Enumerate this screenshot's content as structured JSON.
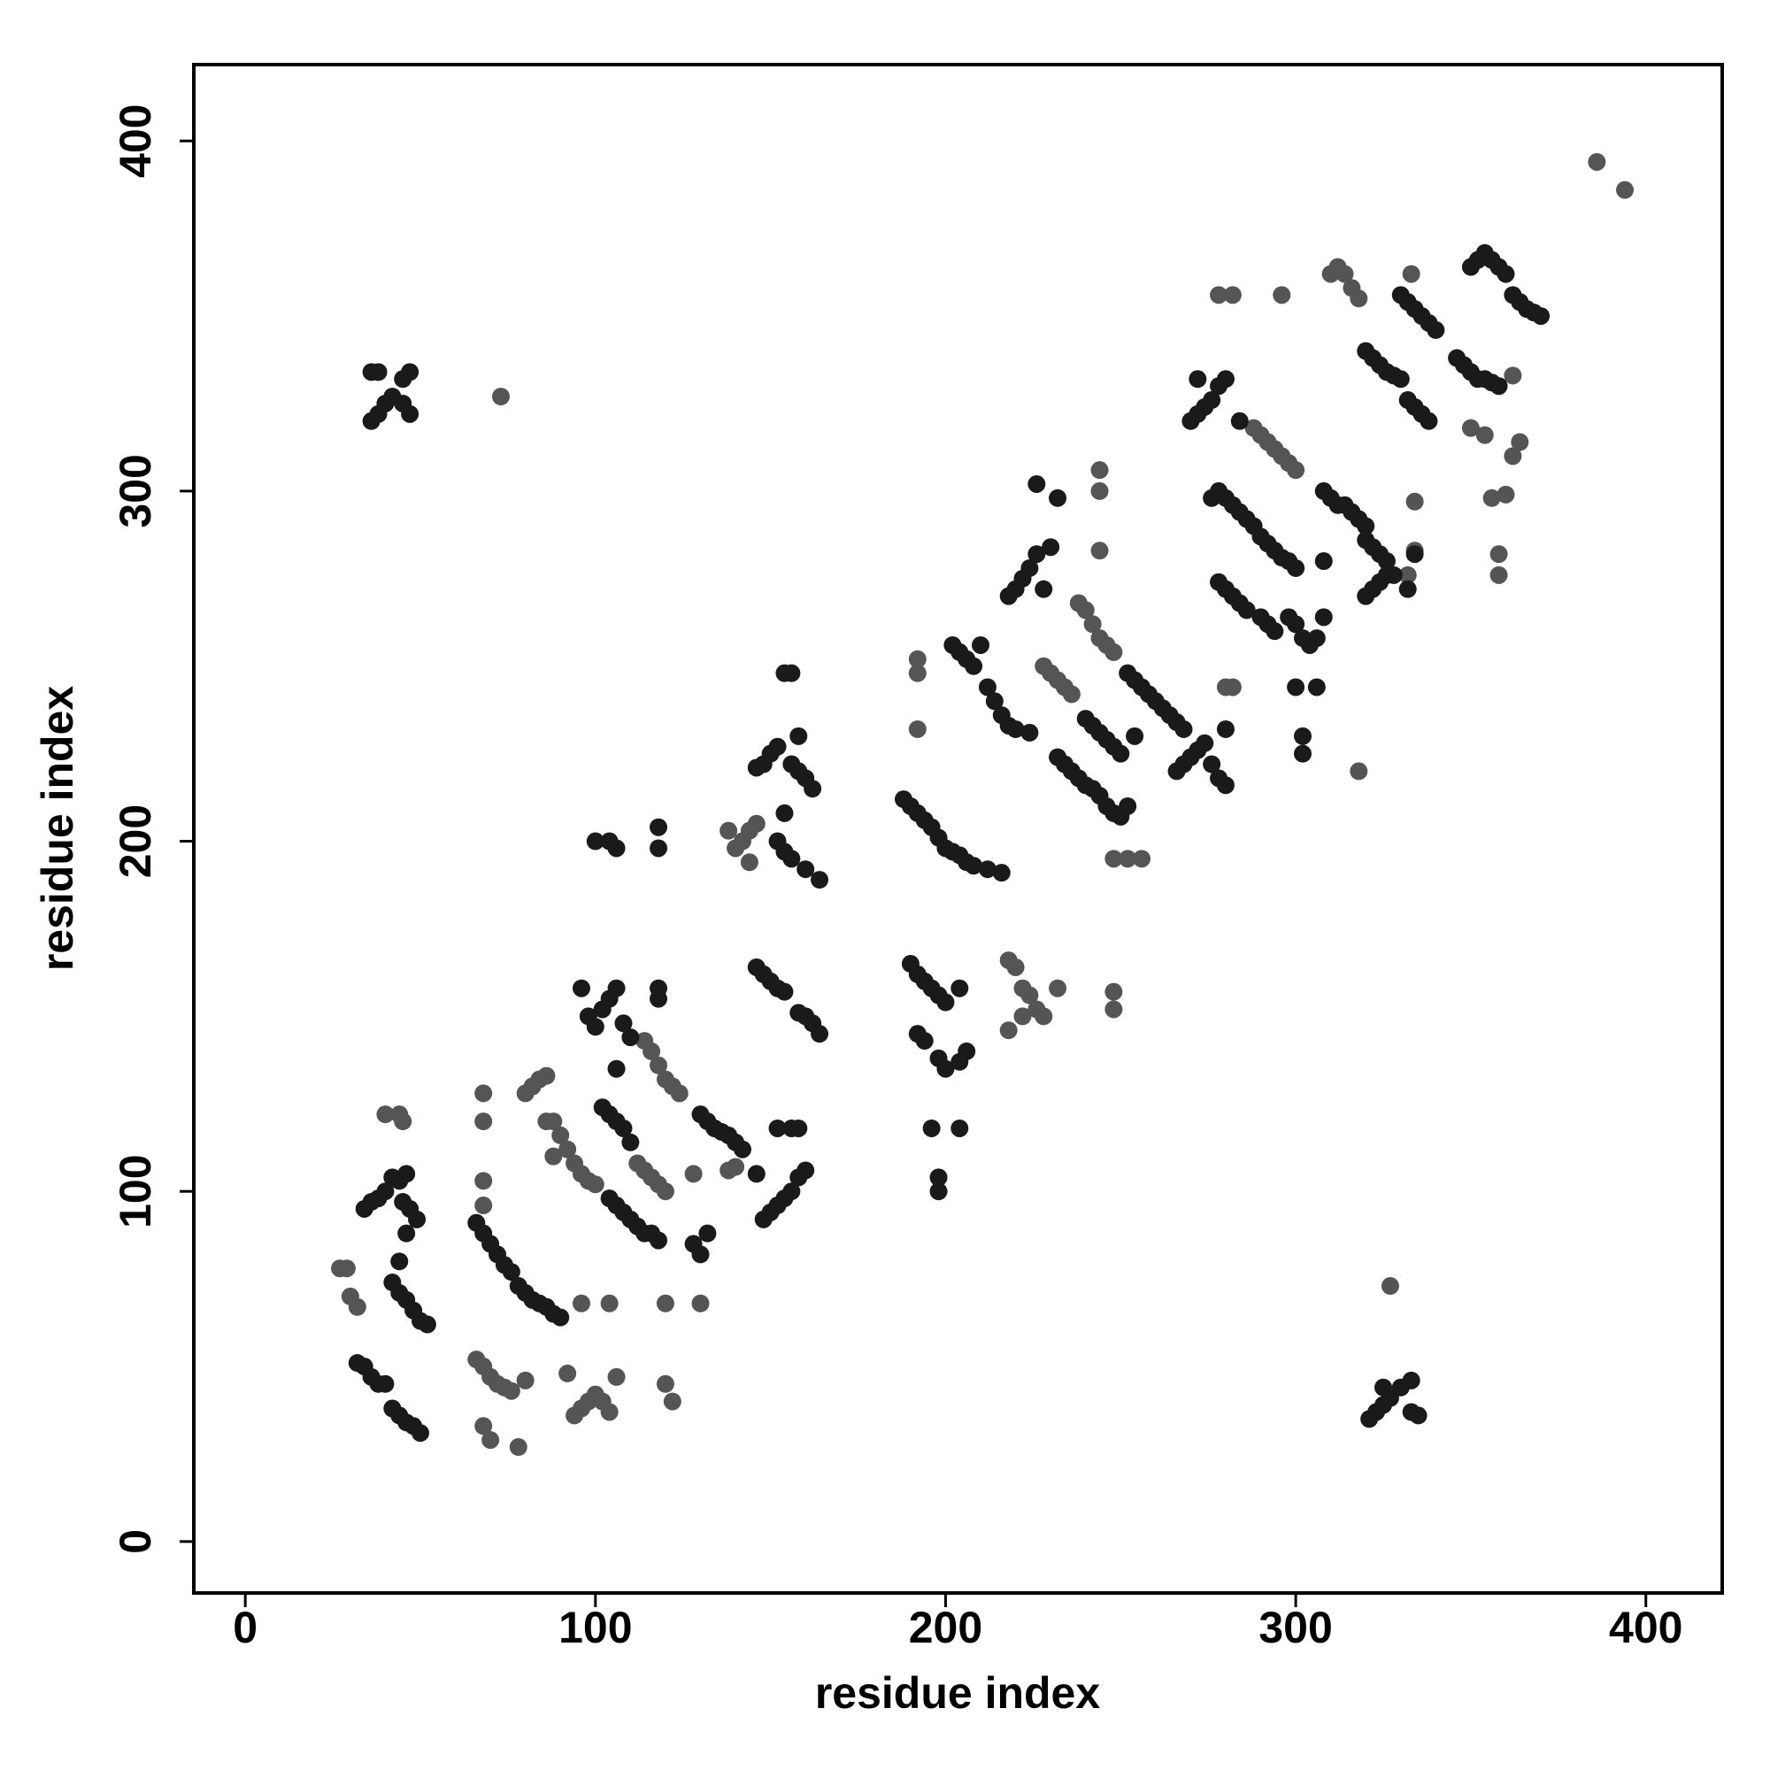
{
  "chart_data": {
    "type": "scatter",
    "x_label": "residue index",
    "y_label": "residue index",
    "xlim": [
      -14.7,
      421.8
    ],
    "ylim": [
      -14.7,
      421.8
    ],
    "xticks": [
      0,
      100,
      200,
      300,
      400
    ],
    "yticks": [
      0,
      100,
      200,
      300,
      400
    ],
    "series": [
      {
        "color": "#555555",
        "x": [
          386,
          394,
          73,
          327,
          27,
          29,
          30,
          32,
          40,
          44,
          45,
          66,
          68,
          70,
          72,
          74,
          76,
          68,
          70,
          78,
          80,
          68,
          68,
          68,
          68,
          80,
          82,
          84,
          86,
          88,
          90,
          92,
          94,
          96,
          98,
          100,
          88,
          86,
          114,
          116,
          118,
          120,
          122,
          124,
          112,
          114,
          116,
          118,
          120,
          92,
          94,
          96,
          98,
          100,
          102,
          104,
          106,
          120,
          122,
          104,
          96,
          120,
          130,
          138,
          140,
          128,
          140,
          142,
          144,
          146,
          138,
          144,
          192,
          192,
          192,
          218,
          220,
          222,
          224,
          226,
          228,
          232,
          218,
          222,
          248,
          248,
          228,
          230,
          232,
          234,
          236,
          238,
          240,
          242,
          244,
          246,
          248,
          244,
          244,
          244,
          248,
          252,
          256,
          280,
          282,
          288,
          290,
          292,
          294,
          296,
          298,
          300,
          278,
          282,
          296,
          318,
          310,
          312,
          314,
          316,
          318,
          333,
          334,
          334,
          332,
          350,
          354,
          356,
          358,
          358,
          360,
          362,
          364,
          362
        ],
        "values": [
          394,
          386,
          327,
          73,
          78,
          78,
          70,
          67,
          122,
          122,
          120,
          52,
          50,
          47,
          45,
          44,
          43,
          33,
          29,
          27,
          46,
          128,
          120,
          103,
          96,
          128,
          130,
          132,
          133,
          120,
          116,
          112,
          108,
          105,
          103,
          102,
          110,
          120,
          143,
          140,
          136,
          132,
          130,
          128,
          108,
          106,
          104,
          102,
          100,
          48,
          36,
          38,
          40,
          42,
          40,
          37,
          47,
          45,
          40,
          68,
          68,
          68,
          68,
          106,
          107,
          105,
          198,
          200,
          203,
          205,
          203,
          194,
          252,
          248,
          232,
          166,
          164,
          158,
          156,
          152,
          150,
          158,
          146,
          150,
          157,
          152,
          250,
          248,
          246,
          244,
          242,
          268,
          266,
          262,
          258,
          256,
          254,
          306,
          300,
          283,
          195,
          195,
          195,
          244,
          244,
          318,
          316,
          314,
          312,
          310,
          308,
          306,
          356,
          356,
          356,
          220,
          362,
          364,
          362,
          358,
          355,
          362,
          297,
          283,
          276,
          318,
          316,
          298,
          282,
          276,
          299,
          310,
          314,
          333
        ]
      },
      {
        "color": "#1a1a1a",
        "x": [
          36,
          38,
          40,
          42,
          36,
          38,
          45,
          47,
          45,
          47,
          321,
          323,
          325,
          327,
          325,
          330,
          333,
          333,
          335,
          32,
          34,
          36,
          38,
          40,
          42,
          44,
          46,
          48,
          50,
          34,
          36,
          38,
          40,
          42,
          44,
          46,
          45,
          47,
          49,
          46,
          44,
          42,
          44,
          46,
          48,
          50,
          52,
          66,
          68,
          70,
          72,
          74,
          76,
          78,
          80,
          82,
          84,
          86,
          88,
          90,
          96,
          98,
          100,
          102,
          104,
          106,
          108,
          110,
          106,
          102,
          104,
          106,
          108,
          110,
          104,
          106,
          108,
          110,
          112,
          114,
          116,
          118,
          130,
          132,
          134,
          136,
          138,
          140,
          142,
          128,
          130,
          132,
          100,
          104,
          106,
          118,
          118,
          118,
          118,
          148,
          150,
          152,
          154,
          156,
          158,
          160,
          146,
          152,
          156,
          158,
          146,
          148,
          150,
          152,
          154,
          158,
          160,
          162,
          164,
          146,
          148,
          150,
          152,
          154,
          156,
          158,
          156,
          158,
          160,
          162,
          154,
          152,
          154,
          156,
          160,
          164,
          190,
          192,
          194,
          196,
          198,
          200,
          192,
          194,
          198,
          200,
          204,
          206,
          196,
          198,
          198,
          204,
          204,
          188,
          190,
          192,
          194,
          196,
          198,
          200,
          202,
          204,
          206,
          208,
          212,
          216,
          202,
          204,
          206,
          208,
          210,
          212,
          214,
          216,
          218,
          220,
          224,
          218,
          220,
          222,
          224,
          226,
          226,
          230,
          232,
          228,
          232,
          234,
          236,
          238,
          240,
          242,
          244,
          246,
          248,
          250,
          252,
          240,
          242,
          244,
          246,
          248,
          250,
          252,
          254,
          256,
          258,
          260,
          262,
          264,
          266,
          268,
          254,
          266,
          268,
          270,
          272,
          274,
          276,
          278,
          280,
          280,
          270,
          272,
          274,
          276,
          278,
          272,
          280,
          284,
          276,
          278,
          280,
          282,
          284,
          286,
          288,
          278,
          280,
          282,
          284,
          286,
          290,
          292,
          294,
          290,
          292,
          294,
          296,
          298,
          300,
          298,
          300,
          302,
          304,
          306,
          308,
          300,
          302,
          302,
          306,
          308,
          310,
          312,
          314,
          316,
          318,
          320,
          308,
          320,
          322,
          324,
          326,
          320,
          322,
          324,
          326,
          328,
          332,
          334,
          320,
          322,
          324,
          326,
          328,
          330,
          332,
          334,
          336,
          338,
          330,
          332,
          334,
          336,
          338,
          340,
          350,
          352,
          354,
          356,
          358,
          360,
          362,
          364,
          366,
          368,
          370,
          346,
          348,
          350,
          352,
          354,
          356,
          358
        ],
        "values": [
          320,
          322,
          325,
          327,
          334,
          334,
          332,
          334,
          325,
          322,
          35,
          37,
          39,
          41,
          44,
          44,
          46,
          37,
          36,
          51,
          50,
          47,
          45,
          45,
          38,
          36,
          34,
          33,
          31,
          95,
          97,
          98,
          100,
          104,
          103,
          105,
          97,
          95,
          92,
          88,
          80,
          74,
          71,
          69,
          66,
          63,
          62,
          91,
          88,
          85,
          82,
          79,
          77,
          73,
          71,
          69,
          68,
          67,
          65,
          64,
          158,
          150,
          147,
          152,
          155,
          158,
          148,
          144,
          135,
          124,
          122,
          120,
          118,
          114,
          98,
          96,
          94,
          92,
          90,
          88,
          88,
          86,
          122,
          120,
          118,
          117,
          116,
          114,
          112,
          85,
          82,
          88,
          200,
          200,
          198,
          204,
          198,
          158,
          155,
          92,
          94,
          96,
          98,
          100,
          104,
          106,
          105,
          118,
          118,
          118,
          164,
          162,
          160,
          158,
          157,
          151,
          150,
          148,
          145,
          221,
          222,
          225,
          227,
          248,
          248,
          230,
          222,
          220,
          218,
          215,
          208,
          200,
          197,
          195,
          192,
          189,
          165,
          162,
          160,
          158,
          156,
          154,
          145,
          143,
          138,
          135,
          137,
          140,
          118,
          104,
          100,
          118,
          158,
          212,
          210,
          208,
          206,
          204,
          201,
          198,
          197,
          196,
          194,
          193,
          192,
          191,
          256,
          254,
          252,
          250,
          256,
          244,
          240,
          236,
          233,
          232,
          231,
          270,
          272,
          275,
          278,
          282,
          302,
          284,
          298,
          272,
          224,
          222,
          220,
          218,
          216,
          215,
          213,
          210,
          208,
          207,
          210,
          235,
          233,
          231,
          229,
          227,
          225,
          248,
          246,
          244,
          242,
          240,
          238,
          236,
          234,
          232,
          230,
          220,
          222,
          224,
          226,
          228,
          222,
          218,
          216,
          232,
          320,
          322,
          324,
          326,
          330,
          332,
          332,
          320,
          298,
          300,
          298,
          296,
          294,
          292,
          290,
          274,
          272,
          270,
          268,
          266,
          264,
          262,
          260,
          287,
          285,
          283,
          281,
          280,
          278,
          264,
          262,
          258,
          256,
          258,
          264,
          244,
          230,
          225,
          244,
          300,
          298,
          296,
          296,
          294,
          292,
          290,
          280,
          286,
          284,
          282,
          280,
          270,
          272,
          274,
          276,
          276,
          272,
          282,
          340,
          338,
          336,
          334,
          333,
          332,
          326,
          324,
          322,
          320,
          356,
          354,
          352,
          350,
          348,
          346,
          364,
          366,
          368,
          366,
          364,
          362,
          356,
          354,
          352,
          351,
          350,
          338,
          336,
          334,
          332,
          332,
          331,
          330
        ]
      }
    ]
  }
}
